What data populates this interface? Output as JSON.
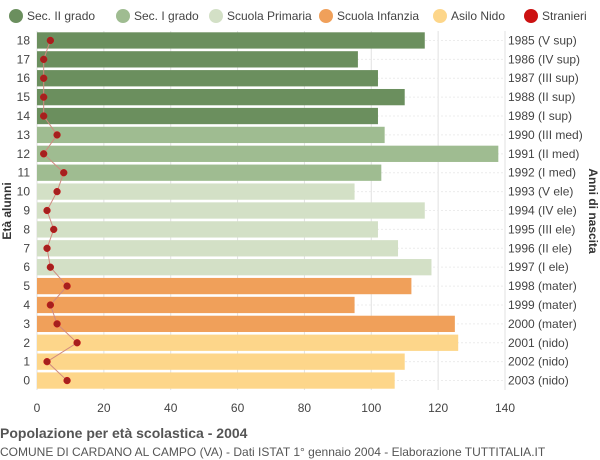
{
  "chart_data": {
    "type": "bar",
    "orientation": "horizontal",
    "title": "Popolazione per età scolastica - 2004",
    "subtitle": "COMUNE DI CARDANO AL CAMPO (VA) - Dati ISTAT 1° gennaio 2004 - Elaborazione TUTTITALIA.IT",
    "ylabel": "Età alunni",
    "ylabel_right": "Anni di nascita",
    "xlim": [
      0,
      140
    ],
    "xticks": [
      "0",
      "20",
      "40",
      "60",
      "80",
      "100",
      "120",
      "140"
    ],
    "grid": true,
    "legend_position": "top",
    "legend": [
      {
        "name": "Sec. II grado",
        "color": "#6b8f5e"
      },
      {
        "name": "Sec. I grado",
        "color": "#9fbc91"
      },
      {
        "name": "Scuola Primaria",
        "color": "#d3e0c6"
      },
      {
        "name": "Scuola Infanzia",
        "color": "#f0a05a"
      },
      {
        "name": "Asilo Nido",
        "color": "#fdd68a"
      },
      {
        "name": "Stranieri",
        "color": "#cc1111"
      }
    ],
    "stranieri_line_color": "#d08a80",
    "rows": [
      {
        "age": "18",
        "birth": "1985 (V sup)",
        "value": 116,
        "stranieri": 4,
        "group": 0
      },
      {
        "age": "17",
        "birth": "1986 (IV sup)",
        "value": 96,
        "stranieri": 2,
        "group": 0
      },
      {
        "age": "16",
        "birth": "1987 (III sup)",
        "value": 102,
        "stranieri": 2,
        "group": 0
      },
      {
        "age": "15",
        "birth": "1988 (II sup)",
        "value": 110,
        "stranieri": 2,
        "group": 0
      },
      {
        "age": "14",
        "birth": "1989 (I sup)",
        "value": 102,
        "stranieri": 2,
        "group": 0
      },
      {
        "age": "13",
        "birth": "1990 (III med)",
        "value": 104,
        "stranieri": 6,
        "group": 1
      },
      {
        "age": "12",
        "birth": "1991 (II med)",
        "value": 138,
        "stranieri": 2,
        "group": 1
      },
      {
        "age": "11",
        "birth": "1992 (I med)",
        "value": 103,
        "stranieri": 8,
        "group": 1
      },
      {
        "age": "10",
        "birth": "1993 (V ele)",
        "value": 95,
        "stranieri": 6,
        "group": 2
      },
      {
        "age": "9",
        "birth": "1994 (IV ele)",
        "value": 116,
        "stranieri": 3,
        "group": 2
      },
      {
        "age": "8",
        "birth": "1995 (III ele)",
        "value": 102,
        "stranieri": 5,
        "group": 2
      },
      {
        "age": "7",
        "birth": "1996 (II ele)",
        "value": 108,
        "stranieri": 3,
        "group": 2
      },
      {
        "age": "6",
        "birth": "1997 (I ele)",
        "value": 118,
        "stranieri": 4,
        "group": 2
      },
      {
        "age": "5",
        "birth": "1998 (mater)",
        "value": 112,
        "stranieri": 9,
        "group": 3
      },
      {
        "age": "4",
        "birth": "1999 (mater)",
        "value": 95,
        "stranieri": 4,
        "group": 3
      },
      {
        "age": "3",
        "birth": "2000 (mater)",
        "value": 125,
        "stranieri": 6,
        "group": 3
      },
      {
        "age": "2",
        "birth": "2001 (nido)",
        "value": 126,
        "stranieri": 12,
        "group": 4
      },
      {
        "age": "1",
        "birth": "2002 (nido)",
        "value": 110,
        "stranieri": 3,
        "group": 4
      },
      {
        "age": "0",
        "birth": "2003 (nido)",
        "value": 107,
        "stranieri": 9,
        "group": 4
      }
    ]
  }
}
